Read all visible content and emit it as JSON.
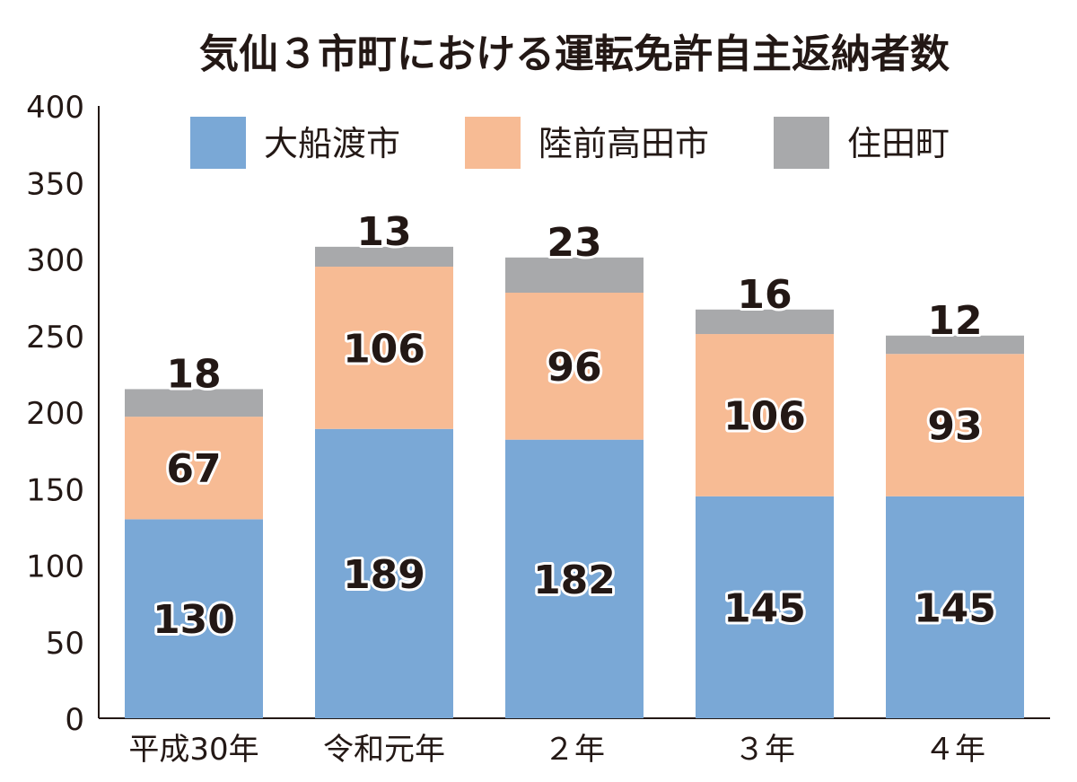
{
  "chart_data": {
    "type": "bar",
    "stacked": true,
    "title": "気仙３市町における運転免許自主返納者数",
    "categories": [
      "平成30年",
      "令和元年",
      "２年",
      "３年",
      "４年"
    ],
    "series": [
      {
        "name": "大船渡市",
        "color": "#7aa8d6",
        "values": [
          130,
          189,
          182,
          145,
          145
        ]
      },
      {
        "name": "陸前高田市",
        "color": "#f7bb94",
        "values": [
          67,
          106,
          96,
          106,
          93
        ]
      },
      {
        "name": "住田町",
        "color": "#a8a9ab",
        "values": [
          18,
          13,
          23,
          16,
          12
        ]
      }
    ],
    "yticks": [
      "0",
      "50",
      "100",
      "150",
      "200",
      "250",
      "300",
      "350",
      "400"
    ],
    "ylim": [
      0,
      400
    ],
    "grid": false,
    "legend": "top"
  }
}
